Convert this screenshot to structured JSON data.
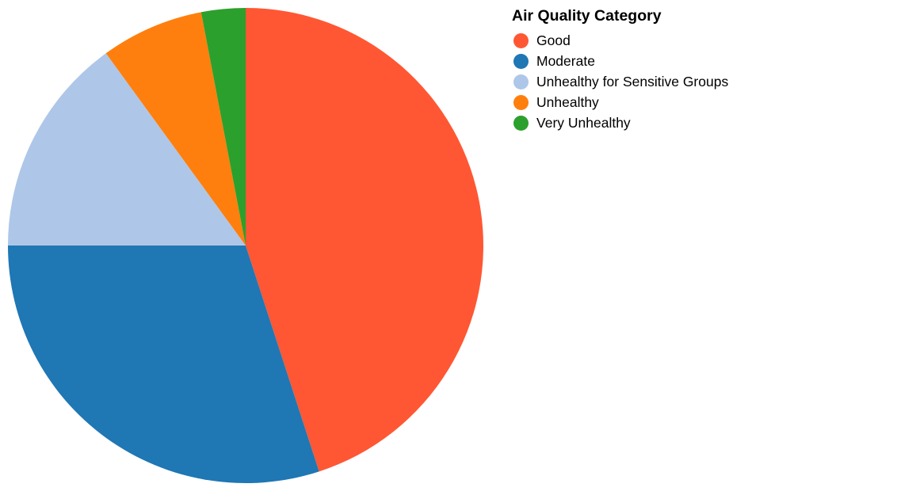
{
  "chart_data": {
    "type": "pie",
    "categories": [
      "Good",
      "Moderate",
      "Unhealthy for Sensitive Groups",
      "Unhealthy",
      "Very Unhealthy"
    ],
    "values": [
      45,
      30,
      15,
      7,
      3
    ],
    "colors": [
      "#ff5733",
      "#1f77b4",
      "#aec7e8",
      "#ff7f0e",
      "#2ca02c"
    ],
    "legend": {
      "title": "Air Quality Category",
      "placement": "top-right"
    }
  }
}
